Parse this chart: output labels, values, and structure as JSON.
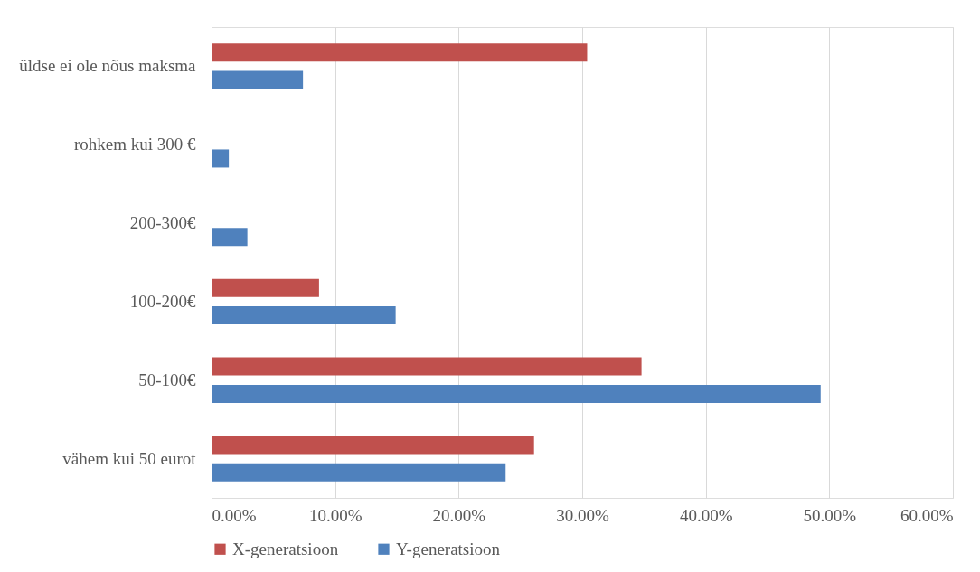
{
  "chart_data": {
    "type": "bar",
    "orientation": "horizontal",
    "categories": [
      "üldse ei ole nõus maksma",
      "rohkem kui 300 €",
      "200-300€",
      "100-200€",
      "50-100€",
      "vähem kui 50 eurot"
    ],
    "series": [
      {
        "name": "X-generatsioon",
        "color": "#c0504d",
        "values": [
          30.4,
          0,
          0,
          8.7,
          34.8,
          26.1
        ]
      },
      {
        "name": "Y-generatsioon",
        "color": "#4f81bd",
        "values": [
          7.4,
          1.4,
          2.9,
          14.9,
          49.3,
          23.8
        ]
      }
    ],
    "xlim": [
      0,
      60
    ],
    "xticks": [
      {
        "value": 0,
        "label": "0.00%"
      },
      {
        "value": 10,
        "label": "10.00%"
      },
      {
        "value": 20,
        "label": "20.00%"
      },
      {
        "value": 30,
        "label": "30.00%"
      },
      {
        "value": 40,
        "label": "40.00%"
      },
      {
        "value": 50,
        "label": "50.00%"
      },
      {
        "value": 60,
        "label": "60.00%"
      }
    ],
    "grid": "x",
    "legend": "bottom"
  }
}
